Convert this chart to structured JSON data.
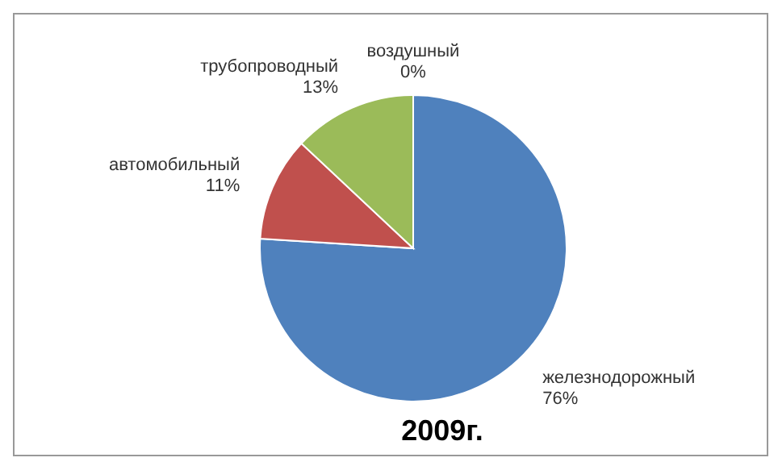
{
  "chart_data": {
    "type": "pie",
    "title": "2009г.",
    "categories": [
      "железнодорожный",
      "автомобильный",
      "трубопроводный",
      "воздушный"
    ],
    "values": [
      76,
      11,
      13,
      0
    ],
    "colors": [
      "#4f81bd",
      "#c0504d",
      "#9bbb59",
      "#8064a2"
    ],
    "value_labels": [
      "76%",
      "11%",
      "13%",
      "0%"
    ]
  }
}
